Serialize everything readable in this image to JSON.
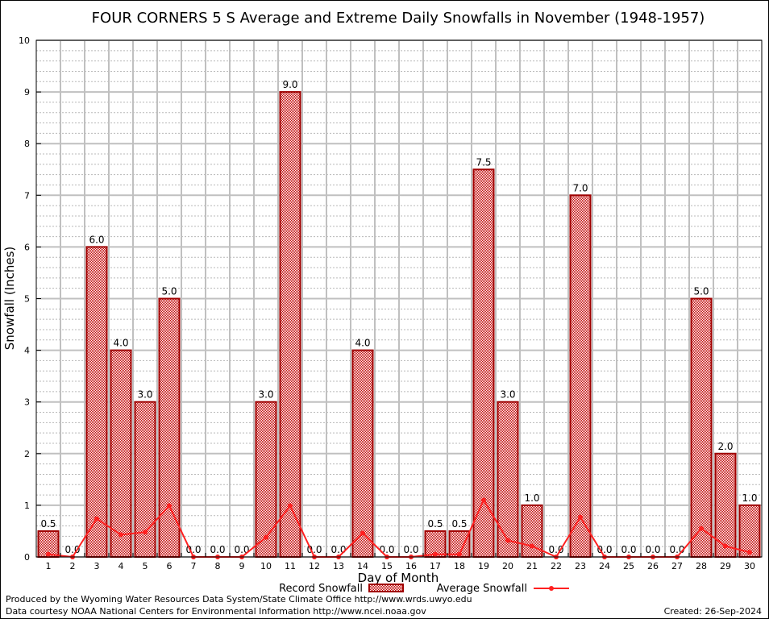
{
  "chart_data": {
    "type": "bar",
    "title": "FOUR CORNERS 5 S Average and Extreme Daily Snowfalls in November (1948-1957)",
    "xlabel": "Day of Month",
    "ylabel": "Snowfall (Inches)",
    "ylim": [
      0,
      10
    ],
    "yticks": [
      "0",
      "1",
      "2",
      "3",
      "4",
      "5",
      "6",
      "7",
      "8",
      "9",
      "10"
    ],
    "categories": [
      "1",
      "2",
      "3",
      "4",
      "5",
      "6",
      "7",
      "8",
      "9",
      "10",
      "11",
      "12",
      "13",
      "14",
      "15",
      "16",
      "17",
      "18",
      "19",
      "20",
      "21",
      "22",
      "23",
      "24",
      "25",
      "26",
      "27",
      "28",
      "29",
      "30"
    ],
    "series": [
      {
        "name": "Record Snowfall",
        "kind": "bar",
        "color": "#a00000",
        "values": [
          0.5,
          0.0,
          6.0,
          4.0,
          3.0,
          5.0,
          0.0,
          0.0,
          0.0,
          3.0,
          9.0,
          0.0,
          0.0,
          4.0,
          0.0,
          0.0,
          0.5,
          0.5,
          7.5,
          3.0,
          1.0,
          0.0,
          7.0,
          0.0,
          0.0,
          0.0,
          0.0,
          5.0,
          2.0,
          1.0
        ],
        "labels": [
          "0.5",
          "0.0",
          "6.0",
          "4.0",
          "3.0",
          "5.0",
          "0.0",
          "0.0",
          "0.0",
          "3.0",
          "9.0",
          "0.0",
          "0.0",
          "4.0",
          "0.0",
          "0.0",
          "0.5",
          "0.5",
          "7.5",
          "3.0",
          "1.0",
          "0.0",
          "7.0",
          "0.0",
          "0.0",
          "0.0",
          "0.0",
          "5.0",
          "2.0",
          "1.0"
        ]
      },
      {
        "name": "Average Snowfall",
        "kind": "line",
        "color": "#ff2020",
        "values": [
          0.05,
          0.0,
          0.74,
          0.43,
          0.48,
          0.99,
          0.0,
          0.0,
          0.0,
          0.38,
          0.99,
          0.0,
          0.0,
          0.46,
          0.0,
          0.0,
          0.05,
          0.05,
          1.1,
          0.32,
          0.21,
          0.0,
          0.77,
          0.0,
          0.0,
          0.0,
          0.0,
          0.55,
          0.21,
          0.09
        ]
      }
    ],
    "grid": true,
    "legend": "bottom-center"
  },
  "footer": {
    "produced": "Produced by the Wyoming Water Resources Data System/State Climate Office http://www.wrds.uwyo.edu",
    "courtesy": "Data courtesy NOAA National Centers for Environmental Information http://www.ncei.noaa.gov",
    "created": "Created: 26-Sep-2024"
  }
}
